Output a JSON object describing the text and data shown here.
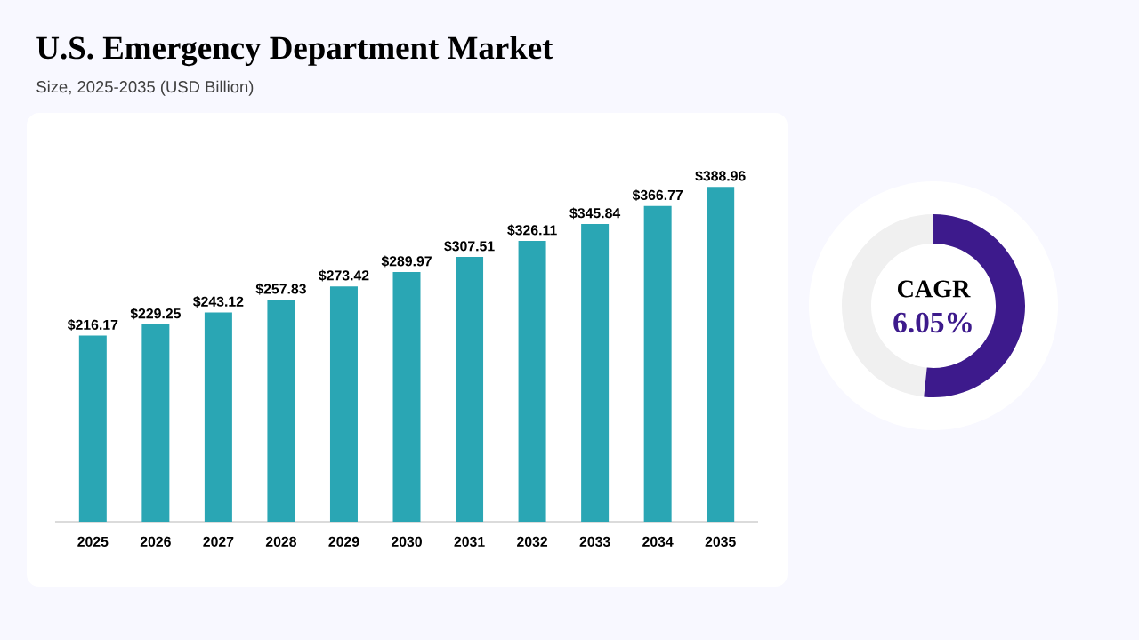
{
  "chart_data": {
    "type": "bar",
    "title": "U.S. Emergency Department Market",
    "subtitle": "Size, 2025-2035 (USD Billion)",
    "categories": [
      "2025",
      "2026",
      "2027",
      "2028",
      "2029",
      "2030",
      "2031",
      "2032",
      "2033",
      "2034",
      "2035"
    ],
    "values": [
      216.17,
      229.25,
      243.12,
      257.83,
      273.42,
      289.97,
      307.51,
      326.11,
      345.84,
      366.77,
      388.96
    ],
    "value_labels": [
      "$216.17",
      "$229.25",
      "$243.12",
      "$257.83",
      "$273.42",
      "$289.97",
      "$307.51",
      "$326.11",
      "$345.84",
      "$366.77",
      "$388.96"
    ],
    "color": "#2aa6b4",
    "tick_labels": "x",
    "annotations": [
      "CAGR",
      "6.05%"
    ]
  }
}
